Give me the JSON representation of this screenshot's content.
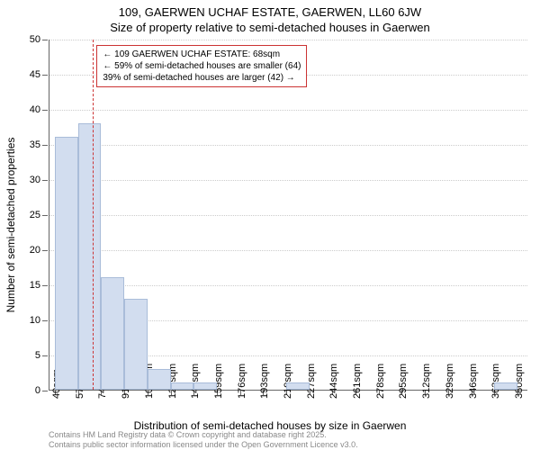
{
  "chart": {
    "type": "histogram",
    "title_main": "109, GAERWEN UCHAF ESTATE, GAERWEN, LL60 6JW",
    "title_sub": "Size of property relative to semi-detached houses in Gaerwen",
    "title_fontsize": 13,
    "x_axis_label": "Distribution of semi-detached houses by size in Gaerwen",
    "y_axis_label": "Number of semi-detached properties",
    "axis_label_fontsize": 12,
    "tick_fontsize": 11,
    "background_color": "#ffffff",
    "grid_color": "#cccccc",
    "axis_color": "#666666",
    "bar_fill": "#d2ddef",
    "bar_stroke": "#a9bcd9",
    "marker_color": "#cc3333",
    "marker_x_value": 68,
    "x_min": 36,
    "x_max": 388,
    "x_tick_start": 40,
    "x_tick_step": 17,
    "x_tick_count": 21,
    "x_tick_unit": "sqm",
    "y_min": 0,
    "y_max": 50,
    "y_tick_step": 5,
    "bins": [
      {
        "start": 40,
        "width": 17,
        "count": 36
      },
      {
        "start": 57,
        "width": 17,
        "count": 38
      },
      {
        "start": 74,
        "width": 17,
        "count": 16
      },
      {
        "start": 91,
        "width": 17,
        "count": 13
      },
      {
        "start": 108,
        "width": 17,
        "count": 3
      },
      {
        "start": 125,
        "width": 17,
        "count": 1
      },
      {
        "start": 142,
        "width": 17,
        "count": 1
      },
      {
        "start": 210,
        "width": 17,
        "count": 1
      },
      {
        "start": 363,
        "width": 17,
        "count": 1
      }
    ],
    "annotation": {
      "line1": "← 109 GAERWEN UCHAF ESTATE: 68sqm",
      "line2": "← 59% of semi-detached houses are smaller (64)",
      "line3": "39% of semi-detached houses are larger (42) →"
    },
    "attribution1": "Contains HM Land Registry data © Crown copyright and database right 2025.",
    "attribution2": "Contains public sector information licensed under the Open Government Licence v3.0."
  }
}
